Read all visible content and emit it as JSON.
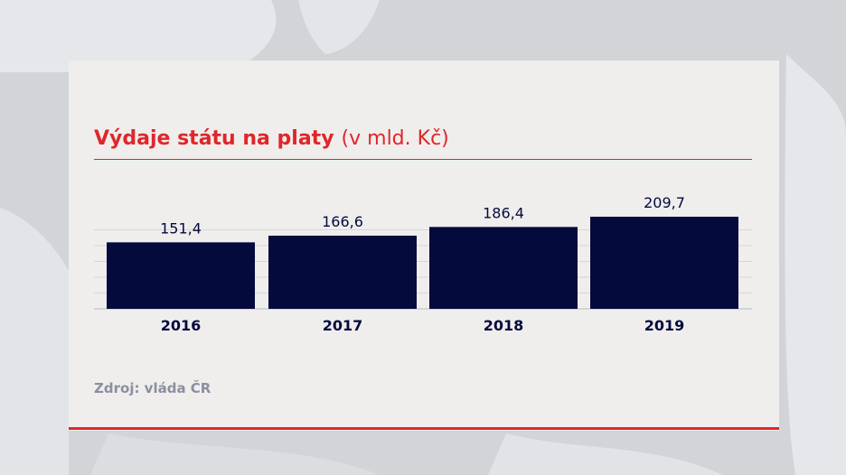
{
  "title": {
    "main": "Výdaje státu na platy",
    "unit": "(v mld. Kč)"
  },
  "source": "Zdroj: vláda ČR",
  "colors": {
    "accent": "#e0262a",
    "bar": "#050a3c",
    "label": "#050a3c",
    "source": "#8c8f9e",
    "card": "#efeeed"
  },
  "chart_data": {
    "type": "bar",
    "title": "Výdaje státu na platy (v mld. Kč)",
    "categories": [
      "2016",
      "2017",
      "2018",
      "2019"
    ],
    "values": [
      151.4,
      166.6,
      186.4,
      209.7
    ],
    "value_labels": [
      "151,4",
      "166,6",
      "186,4",
      "209,7"
    ],
    "xlabel": "",
    "ylabel": "",
    "grid": true,
    "legend": "none"
  }
}
